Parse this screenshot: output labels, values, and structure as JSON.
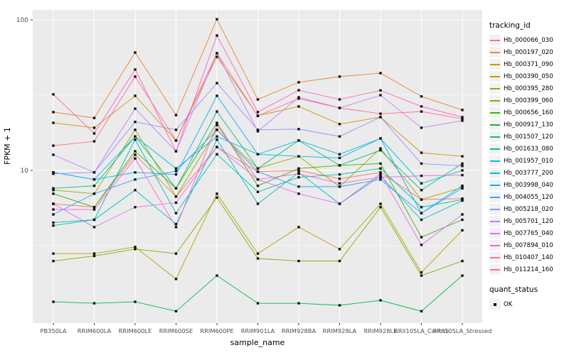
{
  "chart_data": {
    "type": "line",
    "title": "",
    "xlabel": "sample_name",
    "ylabel": "FPKM + 1",
    "y_scale": "log10",
    "ylim": [
      1,
      110
    ],
    "grid": true,
    "panel_bg": "#EBEBEB",
    "grid_color": "#FFFFFF",
    "tick_label_color": "#4D4D4D",
    "marker": {
      "shape": "square",
      "color": "#111111"
    },
    "yticks": [
      {
        "label": "100",
        "value": 100
      },
      {
        "label": "10",
        "value": 10
      }
    ],
    "y_minor_gridlines": [
      31.62,
      3.162
    ],
    "categories": [
      "PB350LA",
      "RRIM600LA",
      "RRIM600LE",
      "RRIM600SE",
      "RRIM600PE",
      "RRIM901LA",
      "RRIM928BA",
      "RRIM928LA",
      "RRIM928LE",
      "RRII105LA_Control",
      "RRII105LA_Stressed"
    ],
    "legend_title": "tracking_id",
    "legend_position": "right",
    "quant_legend": {
      "title": "quant_status",
      "items": [
        {
          "label": "OK"
        }
      ]
    },
    "series": [
      {
        "name": "Hb_000066_030",
        "color": "#F8766D",
        "values": [
          6.0,
          5.7,
          12.7,
          6.7,
          14.3,
          9.8,
          10.0,
          8.8,
          9.7,
          6.4,
          6.5
        ]
      },
      {
        "name": "Hb_000197_020",
        "color": "#EA8331",
        "values": [
          24.4,
          22.3,
          60.7,
          23.3,
          101.0,
          29.6,
          38.5,
          42.0,
          44.3,
          31.0,
          25.2
        ]
      },
      {
        "name": "Hb_000371_090",
        "color": "#D89000",
        "values": [
          20.7,
          19.2,
          31.3,
          15.8,
          56.8,
          23.1,
          26.6,
          20.3,
          22.6,
          13.1,
          12.4
        ]
      },
      {
        "name": "Hb_000390_050",
        "color": "#C09B00",
        "values": [
          2.8,
          2.8,
          3.1,
          1.9,
          7.0,
          2.8,
          4.2,
          3.0,
          6.0,
          2.1,
          4.0
        ]
      },
      {
        "name": "Hb_000395_280",
        "color": "#A3A500",
        "values": [
          7.4,
          7.0,
          18.6,
          6.7,
          18.6,
          10.3,
          12.4,
          7.8,
          14.0,
          6.4,
          7.7
        ]
      },
      {
        "name": "Hb_000399_060",
        "color": "#7CAE00",
        "values": [
          2.5,
          2.7,
          3.0,
          2.8,
          6.6,
          2.6,
          2.5,
          2.5,
          5.7,
          2.0,
          2.5
        ]
      },
      {
        "name": "Hb_000656_160",
        "color": "#39B600",
        "values": [
          7.0,
          5.7,
          13.4,
          7.6,
          20.7,
          7.9,
          10.3,
          10.8,
          11.1,
          3.6,
          4.7
        ]
      },
      {
        "name": "Hb_000917_130",
        "color": "#00BB4E",
        "values": [
          1.34,
          1.31,
          1.34,
          1.16,
          2.0,
          1.31,
          1.31,
          1.27,
          1.37,
          1.16,
          2.0
        ]
      },
      {
        "name": "Hb_001507_120",
        "color": "#00BF7D",
        "values": [
          7.6,
          7.9,
          16.8,
          7.6,
          24.6,
          10.3,
          15.8,
          10.8,
          13.6,
          7.4,
          11.1
        ]
      },
      {
        "name": "Hb_001633_080",
        "color": "#00C1A3",
        "values": [
          4.5,
          4.7,
          16.0,
          5.2,
          12.8,
          7.2,
          9.0,
          9.4,
          10.3,
          5.7,
          6.4
        ]
      },
      {
        "name": "Hb_001957_010",
        "color": "#00BFC4",
        "values": [
          4.3,
          4.7,
          7.4,
          4.4,
          16.0,
          6.0,
          9.7,
          6.0,
          9.2,
          4.7,
          6.3
        ]
      },
      {
        "name": "Hb_003777_200",
        "color": "#00BAE0",
        "values": [
          9.7,
          8.7,
          16.8,
          10.3,
          16.8,
          12.8,
          12.4,
          12.1,
          16.3,
          8.2,
          10.0
        ]
      },
      {
        "name": "Hb_003998_040",
        "color": "#00B0F6",
        "values": [
          9.7,
          8.7,
          9.7,
          9.4,
          31.3,
          12.8,
          15.8,
          12.8,
          16.3,
          5.2,
          7.9
        ]
      },
      {
        "name": "Hb_004055_120",
        "color": "#35A2FF",
        "values": [
          5.1,
          7.0,
          8.7,
          9.9,
          18.6,
          9.8,
          7.8,
          7.8,
          8.7,
          5.2,
          7.6
        ]
      },
      {
        "name": "Hb_005218_020",
        "color": "#9590FF",
        "values": [
          9.5,
          9.7,
          21.0,
          18.6,
          38.0,
          18.6,
          18.8,
          16.8,
          22.6,
          11.1,
          10.7
        ]
      },
      {
        "name": "Hb_005701_120",
        "color": "#C77CFF",
        "values": [
          12.7,
          9.7,
          25.7,
          13.4,
          60.0,
          18.2,
          30.6,
          26.0,
          31.6,
          19.2,
          21.4
        ]
      },
      {
        "name": "Hb_007765_040",
        "color": "#E76BF3",
        "values": [
          6.0,
          4.2,
          5.7,
          6.1,
          14.3,
          8.7,
          7.0,
          6.0,
          9.5,
          3.2,
          5.1
        ]
      },
      {
        "name": "Hb_007894_010",
        "color": "#FA62DB",
        "values": [
          5.5,
          5.5,
          12.0,
          4.2,
          20.0,
          8.7,
          9.5,
          8.2,
          9.0,
          9.2,
          9.3
        ]
      },
      {
        "name": "Hb_010407_140",
        "color": "#FF62BC",
        "values": [
          32.0,
          17.6,
          46.8,
          13.4,
          78.7,
          24.4,
          34.1,
          29.6,
          34.0,
          26.6,
          22.6
        ]
      },
      {
        "name": "Hb_011214_160",
        "color": "#FF6A98",
        "values": [
          14.6,
          15.6,
          42.0,
          15.8,
          60.0,
          23.0,
          30.0,
          26.0,
          23.8,
          24.6,
          22.0
        ]
      }
    ]
  }
}
